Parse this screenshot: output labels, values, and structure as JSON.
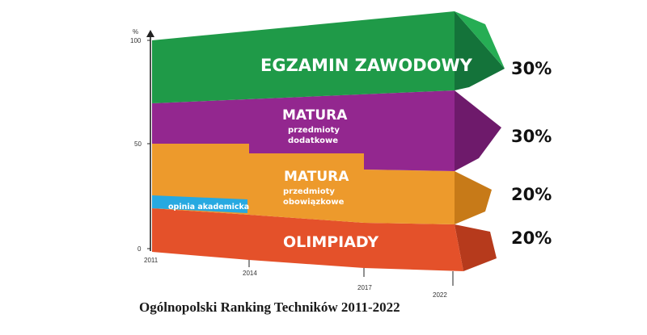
{
  "chart_data": {
    "type": "area",
    "title": "Ogólnopolski Ranking Techników 2011-2022",
    "ylabel": "%",
    "ylim": [
      0,
      100
    ],
    "y_ticks": [
      "0",
      "50",
      "100"
    ],
    "x_ticks": [
      "2011",
      "2014",
      "2017",
      "2022"
    ],
    "layers": [
      {
        "key": "olimpiady",
        "label": "OLIMPIADY",
        "sub": [],
        "share": "20%",
        "color": "#e4512a"
      },
      {
        "key": "matura_obow",
        "label": "MATURA",
        "sub": [
          "przedmioty",
          "obowiązkowe"
        ],
        "share": "20%",
        "color": "#ed9a2c"
      },
      {
        "key": "matura_dod",
        "label": "MATURA",
        "sub": [
          "przedmioty",
          "dodatkowe"
        ],
        "share": "30%",
        "color": "#93278f"
      },
      {
        "key": "egzamin",
        "label": "EGZAMIN ZAWODOWY",
        "sub": [],
        "share": "30%",
        "color": "#1f9a48"
      }
    ],
    "extra_layer": {
      "label": "opinia akademicka",
      "color": "#27a9e1",
      "range": [
        "2011",
        "2014"
      ]
    }
  }
}
